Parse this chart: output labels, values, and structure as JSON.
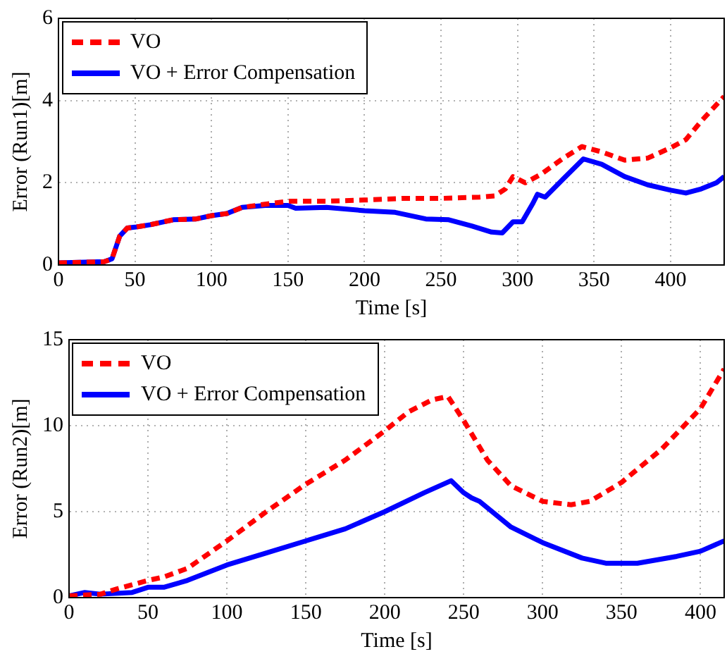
{
  "chart_data": [
    {
      "type": "line",
      "xlabel": "Time [s]",
      "ylabel": "Error (Run1)[m]",
      "xlim": [
        0,
        435
      ],
      "xticks": [
        0,
        50,
        100,
        150,
        200,
        250,
        300,
        350,
        400
      ],
      "ylim": [
        0,
        6
      ],
      "yticks": [
        0,
        2,
        4,
        6
      ],
      "grid": true,
      "legend": "top left",
      "marker": "none",
      "series": [
        {
          "name": "VO",
          "color": "#ff0000",
          "line_style": "dashed",
          "x": [
            0,
            30,
            35,
            40,
            45,
            50,
            60,
            75,
            90,
            100,
            110,
            120,
            135,
            150,
            175,
            200,
            225,
            250,
            275,
            285,
            292,
            297,
            305,
            315,
            330,
            342,
            355,
            370,
            385,
            400,
            410,
            420,
            435
          ],
          "values": [
            0.05,
            0.08,
            0.15,
            0.7,
            0.9,
            0.92,
            0.98,
            1.1,
            1.12,
            1.2,
            1.25,
            1.4,
            1.48,
            1.55,
            1.55,
            1.58,
            1.62,
            1.62,
            1.65,
            1.68,
            1.85,
            2.15,
            2.0,
            2.2,
            2.6,
            2.88,
            2.75,
            2.55,
            2.6,
            2.85,
            3.05,
            3.5,
            4.1
          ]
        },
        {
          "name": "VO + Error Compensation",
          "color": "#0000ff",
          "line_style": "solid",
          "x": [
            0,
            30,
            35,
            40,
            45,
            50,
            60,
            75,
            90,
            100,
            110,
            120,
            135,
            150,
            155,
            175,
            200,
            220,
            240,
            255,
            270,
            283,
            290,
            297,
            303,
            310,
            313,
            318,
            330,
            343,
            355,
            370,
            385,
            400,
            410,
            420,
            430,
            435
          ],
          "values": [
            0.05,
            0.08,
            0.15,
            0.7,
            0.9,
            0.92,
            0.98,
            1.1,
            1.12,
            1.2,
            1.25,
            1.4,
            1.45,
            1.45,
            1.38,
            1.4,
            1.32,
            1.28,
            1.12,
            1.1,
            0.95,
            0.8,
            0.78,
            1.05,
            1.05,
            1.5,
            1.72,
            1.65,
            2.1,
            2.58,
            2.45,
            2.15,
            1.95,
            1.82,
            1.75,
            1.85,
            2.0,
            2.15
          ]
        }
      ]
    },
    {
      "type": "line",
      "xlabel": "Time [s]",
      "ylabel": "Error (Run2)[m]",
      "xlim": [
        0,
        415
      ],
      "xticks": [
        0,
        50,
        100,
        150,
        200,
        250,
        300,
        350,
        400
      ],
      "ylim": [
        0,
        15
      ],
      "yticks": [
        0,
        5,
        10,
        15
      ],
      "grid": true,
      "legend": "top left",
      "marker": "none",
      "series": [
        {
          "name": "VO",
          "color": "#ff0000",
          "line_style": "dashed",
          "x": [
            0,
            20,
            30,
            50,
            60,
            75,
            100,
            125,
            150,
            175,
            200,
            215,
            230,
            240,
            250,
            265,
            280,
            300,
            318,
            330,
            350,
            375,
            400,
            415
          ],
          "values": [
            0.1,
            0.2,
            0.5,
            1.0,
            1.2,
            1.7,
            3.3,
            5.0,
            6.6,
            8.0,
            9.7,
            10.8,
            11.5,
            11.7,
            10.3,
            8.0,
            6.5,
            5.6,
            5.4,
            5.6,
            6.7,
            8.6,
            11.0,
            13.3
          ]
        },
        {
          "name": "VO + Error Compensation",
          "color": "#0000ff",
          "line_style": "solid",
          "x": [
            0,
            10,
            20,
            40,
            50,
            60,
            75,
            100,
            125,
            150,
            175,
            200,
            225,
            242,
            250,
            255,
            260,
            280,
            300,
            325,
            340,
            360,
            385,
            400,
            415
          ],
          "values": [
            0.1,
            0.3,
            0.2,
            0.3,
            0.6,
            0.6,
            1.0,
            1.9,
            2.6,
            3.3,
            4.0,
            5.0,
            6.1,
            6.8,
            6.1,
            5.8,
            5.6,
            4.1,
            3.2,
            2.3,
            2.0,
            2.0,
            2.4,
            2.7,
            3.3
          ]
        }
      ]
    }
  ]
}
